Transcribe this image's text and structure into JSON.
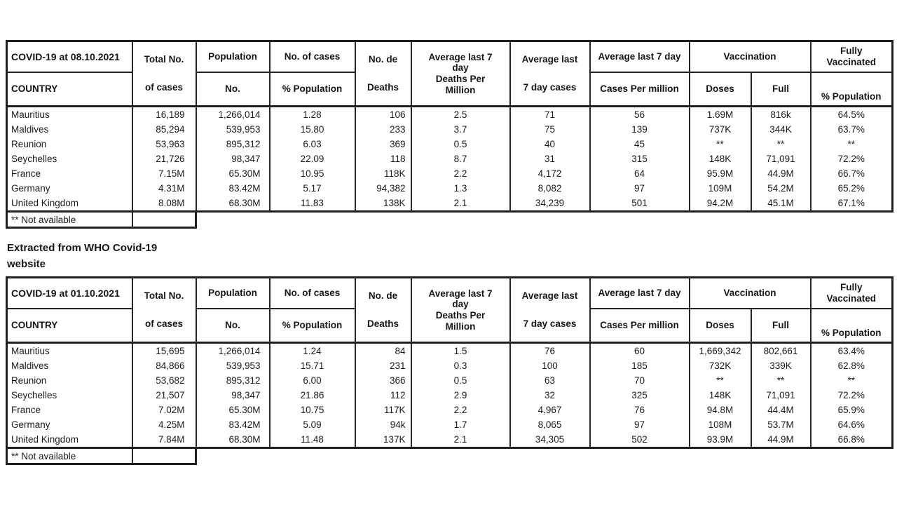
{
  "columns": {
    "country_label": "COUNTRY",
    "total_line1": "Total No.",
    "total_line2": "of cases",
    "population_line1": "Population",
    "population_line2": "No.",
    "cases_pct_line1": "No. of cases",
    "cases_pct_line2": "% Population",
    "deaths_line1": "No. de",
    "deaths_line2": "Deaths",
    "avg_deaths_pm_line1": "Average last 7 day",
    "avg_deaths_pm_line2": "Deaths Per Million",
    "avg_cases_line1": "Average last",
    "avg_cases_line2": "7 day cases",
    "avg_cases_pm_line1": "Average last 7 day",
    "avg_cases_pm_line2": "Cases Per million",
    "vaccination": "Vaccination",
    "doses": "Doses",
    "full": "Full",
    "fully_vaccinated": "Fully Vaccinated",
    "fully_vaccinated_pct": "% Population"
  },
  "source_note": {
    "line1": "Extracted from WHO Covid-19",
    "line2": "website"
  },
  "tables": [
    {
      "title": "COVID-19 at 08.10.2021",
      "footnote": "** Not available",
      "rows": [
        [
          "Mauritius",
          "16,189",
          "1,266,014",
          "1.28",
          "106",
          "2.5",
          "71",
          "56",
          "1.69M",
          "816k",
          "64.5%"
        ],
        [
          "Maldives",
          "85,294",
          "539,953",
          "15.80",
          "233",
          "3.7",
          "75",
          "139",
          "737K",
          "344K",
          "63.7%"
        ],
        [
          "Reunion",
          "53,963",
          "895,312",
          "6.03",
          "369",
          "0.5",
          "40",
          "45",
          "**",
          "**",
          "**"
        ],
        [
          "Seychelles",
          "21,726",
          "98,347",
          "22.09",
          "118",
          "8.7",
          "31",
          "315",
          "148K",
          "71,091",
          "72.2%"
        ],
        [
          "France",
          "7.15M",
          "65.30M",
          "10.95",
          "118K",
          "2.2",
          "4,172",
          "64",
          "95.9M",
          "44.9M",
          "66.7%"
        ],
        [
          "Germany",
          "4.31M",
          "83.42M",
          "5.17",
          "94,382",
          "1.3",
          "8,082",
          "97",
          "109M",
          "54.2M",
          "65.2%"
        ],
        [
          "United Kingdom",
          "8.08M",
          "68.30M",
          "11.83",
          "138K",
          "2.1",
          "34,239",
          "501",
          "94.2M",
          "45.1M",
          "67.1%"
        ]
      ]
    },
    {
      "title": "COVID-19 at 01.10.2021",
      "footnote": "** Not available",
      "rows": [
        [
          "Mauritius",
          "15,695",
          "1,266,014",
          "1.24",
          "84",
          "1.5",
          "76",
          "60",
          "1,669,342",
          "802,661",
          "63.4%"
        ],
        [
          "Maldives",
          "84,866",
          "539,953",
          "15.71",
          "231",
          "0.3",
          "100",
          "185",
          "732K",
          "339K",
          "62.8%"
        ],
        [
          "Reunion",
          "53,682",
          "895,312",
          "6.00",
          "366",
          "0.5",
          "63",
          "70",
          "**",
          "**",
          "**"
        ],
        [
          "Seychelles",
          "21,507",
          "98,347",
          "21.86",
          "112",
          "2.9",
          "32",
          "325",
          "148K",
          "71,091",
          "72.2%"
        ],
        [
          "France",
          "7.02M",
          "65.30M",
          "10.75",
          "117K",
          "2.2",
          "4,967",
          "76",
          "94.8M",
          "44.4M",
          "65.9%"
        ],
        [
          "Germany",
          "4.25M",
          "83.42M",
          "5.09",
          "94k",
          "1.7",
          "8,065",
          "97",
          "108M",
          "53.7M",
          "64.6%"
        ],
        [
          "United Kingdom",
          "7.84M",
          "68.30M",
          "11.48",
          "137K",
          "2.1",
          "34,305",
          "502",
          "93.9M",
          "44.9M",
          "66.8%"
        ]
      ]
    }
  ]
}
